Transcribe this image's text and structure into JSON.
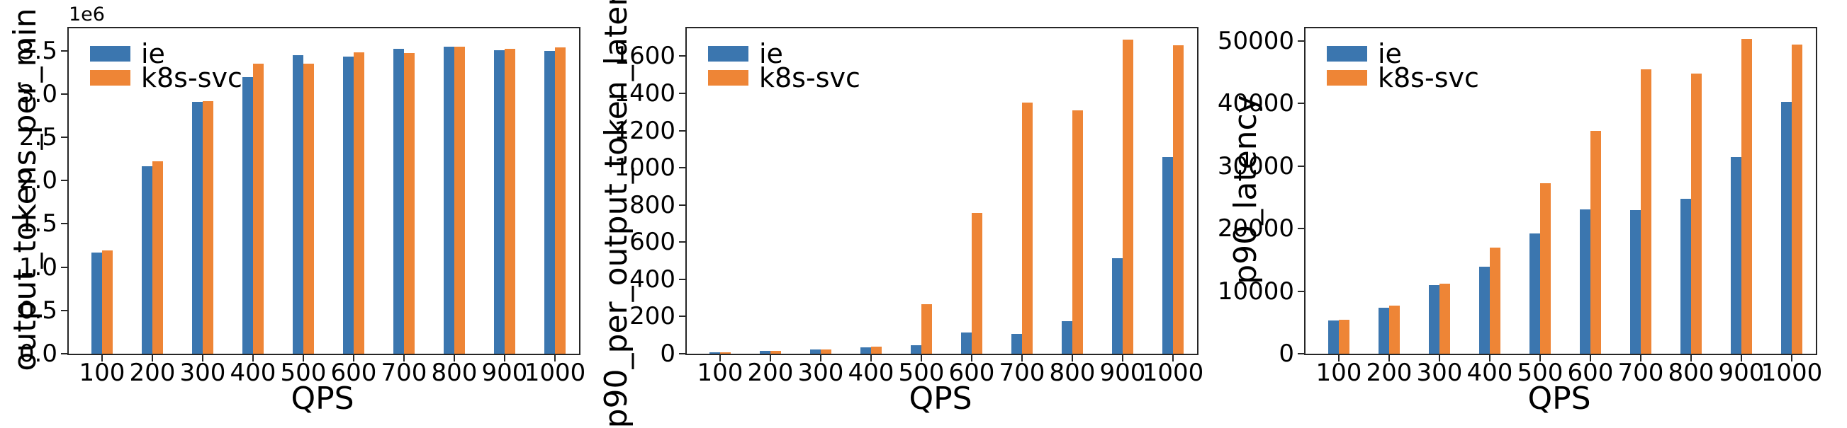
{
  "page": {
    "background": "#ffffff"
  },
  "colors": {
    "ie": "#3b76af",
    "k8s_svc": "#ee8536",
    "axis": "#262626",
    "text": "#000000"
  },
  "chart_data": [
    {
      "type": "bar",
      "title": "",
      "xlabel": "QPS",
      "ylabel": "output_tokens_per_min",
      "y_offset_label": "1e6",
      "grid": false,
      "legend_position": "upper left",
      "categories": [
        100,
        200,
        300,
        400,
        500,
        600,
        700,
        800,
        900,
        1000
      ],
      "series": [
        {
          "name": "ie",
          "color": "#3b76af",
          "values": [
            1170000,
            2170000,
            2910000,
            3200000,
            3450000,
            3430000,
            3520000,
            3550000,
            3510000,
            3500000
          ]
        },
        {
          "name": "k8s-svc",
          "color": "#ee8536",
          "values": [
            1190000,
            2220000,
            2920000,
            3350000,
            3350000,
            3480000,
            3470000,
            3550000,
            3520000,
            3540000
          ]
        }
      ],
      "ylim": [
        0,
        3760000
      ],
      "yticks": [
        0,
        500000,
        1000000,
        1500000,
        2000000,
        2500000,
        3000000,
        3500000
      ],
      "ytick_labels": [
        "0.0",
        "0.5",
        "1.0",
        "1.5",
        "2.0",
        "2.5",
        "3.0",
        "3.5"
      ]
    },
    {
      "type": "bar",
      "title": "",
      "xlabel": "QPS",
      "ylabel": "p90_per_output_token_latency",
      "y_offset_label": "",
      "grid": false,
      "legend_position": "upper left",
      "categories": [
        100,
        200,
        300,
        400,
        500,
        600,
        700,
        800,
        900,
        1000
      ],
      "series": [
        {
          "name": "ie",
          "color": "#3b76af",
          "values": [
            8,
            16,
            24,
            33,
            47,
            116,
            106,
            176,
            514,
            1056
          ]
        },
        {
          "name": "k8s-svc",
          "color": "#ee8536",
          "values": [
            9,
            16,
            24,
            37,
            268,
            758,
            1352,
            1310,
            1688,
            1660
          ]
        }
      ],
      "ylim": [
        0,
        1750
      ],
      "yticks": [
        0,
        200,
        400,
        600,
        800,
        1000,
        1200,
        1400,
        1600
      ],
      "ytick_labels": [
        "0",
        "200",
        "400",
        "600",
        "800",
        "1000",
        "1200",
        "1400",
        "1600"
      ]
    },
    {
      "type": "bar",
      "title": "",
      "xlabel": "QPS",
      "ylabel": "p90_latency",
      "y_offset_label": "",
      "grid": false,
      "legend_position": "upper left",
      "categories": [
        100,
        200,
        300,
        400,
        500,
        600,
        700,
        800,
        900,
        1000
      ],
      "series": [
        {
          "name": "ie",
          "color": "#3b76af",
          "values": [
            5300,
            7350,
            10950,
            13950,
            19250,
            23100,
            22900,
            24700,
            31400,
            40200
          ]
        },
        {
          "name": "k8s-svc",
          "color": "#ee8536",
          "values": [
            5450,
            7650,
            11150,
            16900,
            27200,
            35600,
            45400,
            44800,
            50300,
            49400
          ]
        }
      ],
      "ylim": [
        0,
        52000
      ],
      "yticks": [
        0,
        10000,
        20000,
        30000,
        40000,
        50000
      ],
      "ytick_labels": [
        "0",
        "10000",
        "20000",
        "30000",
        "40000",
        "50000"
      ]
    }
  ]
}
